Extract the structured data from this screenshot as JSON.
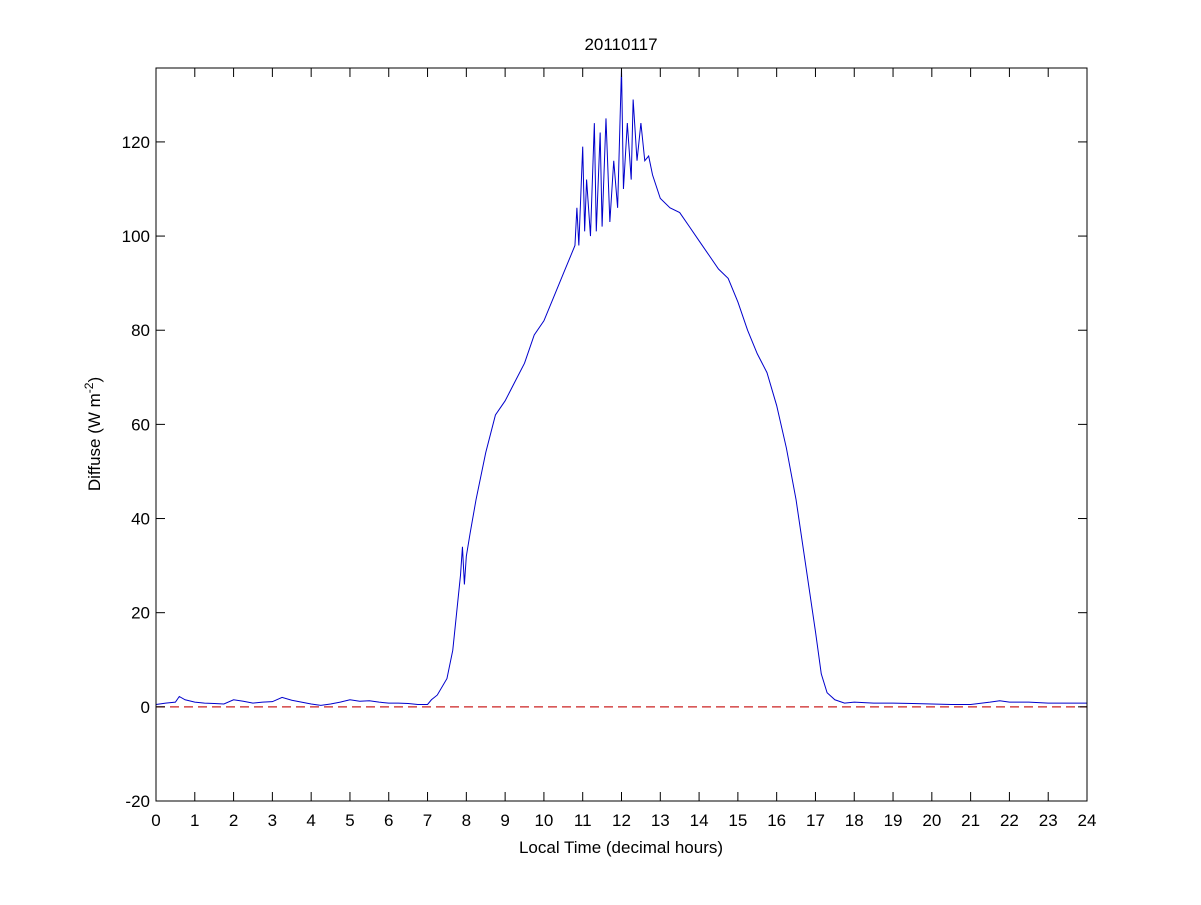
{
  "chart_data": {
    "type": "line",
    "title": "20110117",
    "xlabel": "Local Time (decimal hours)",
    "ylabel": "Diffuse (W m",
    "ylabel_sup": "-2",
    "ylabel_end": ")",
    "xlim": [
      0,
      24
    ],
    "ylim": [
      -20,
      135.7
    ],
    "xticks": [
      0,
      1,
      2,
      3,
      4,
      5,
      6,
      7,
      8,
      9,
      10,
      11,
      12,
      13,
      14,
      15,
      16,
      17,
      18,
      19,
      20,
      21,
      22,
      23,
      24
    ],
    "yticks": [
      -20,
      0,
      20,
      40,
      60,
      80,
      100,
      120
    ],
    "reference_line": {
      "y": 0,
      "color": "#cc2222",
      "dashed": true
    },
    "x": [
      0,
      0.25,
      0.5,
      0.6,
      0.75,
      1,
      1.25,
      1.5,
      1.75,
      2,
      2.25,
      2.5,
      2.75,
      3,
      3.25,
      3.5,
      3.75,
      4,
      4.25,
      4.5,
      4.75,
      5,
      5.25,
      5.5,
      5.75,
      6,
      6.25,
      6.5,
      6.75,
      7,
      7.1,
      7.25,
      7.5,
      7.65,
      7.75,
      7.85,
      7.9,
      7.95,
      8,
      8.1,
      8.25,
      8.5,
      8.75,
      9,
      9.25,
      9.5,
      9.75,
      10,
      10.25,
      10.5,
      10.7,
      10.8,
      10.85,
      10.9,
      11,
      11.05,
      11.1,
      11.2,
      11.3,
      11.35,
      11.45,
      11.5,
      11.6,
      11.7,
      11.8,
      11.9,
      12,
      12.05,
      12.15,
      12.25,
      12.3,
      12.4,
      12.5,
      12.6,
      12.7,
      12.8,
      13,
      13.25,
      13.5,
      13.75,
      14,
      14.25,
      14.5,
      14.75,
      15,
      15.25,
      15.5,
      15.75,
      16,
      16.25,
      16.5,
      16.75,
      17,
      17.15,
      17.3,
      17.5,
      17.75,
      18,
      18.5,
      19,
      19.5,
      20,
      20.5,
      21,
      21.5,
      21.75,
      22,
      22.5,
      23,
      24
    ],
    "series": [
      {
        "color": "#0000cc",
        "values": [
          0.5,
          0.8,
          1,
          2.2,
          1.5,
          1,
          0.8,
          0.7,
          0.6,
          1.5,
          1.2,
          0.8,
          1,
          1.1,
          2,
          1.4,
          1,
          0.6,
          0.3,
          0.6,
          1,
          1.5,
          1.2,
          1.3,
          1,
          0.8,
          0.8,
          0.7,
          0.5,
          0.5,
          1.5,
          2.5,
          6,
          12,
          20,
          28,
          34,
          26,
          32,
          37,
          44,
          54,
          62,
          65,
          69,
          73,
          79,
          82,
          87,
          92,
          96,
          98,
          106,
          98,
          119,
          101,
          112,
          100,
          124,
          101,
          122,
          102,
          125,
          103,
          116,
          106,
          135.7,
          110,
          124,
          112,
          129,
          116,
          124,
          116,
          117,
          113,
          108,
          106,
          105,
          102,
          99,
          96,
          93,
          91,
          86,
          80,
          75,
          71,
          64,
          55,
          44,
          30,
          16,
          7,
          3,
          1.5,
          0.8,
          1,
          0.8,
          0.8,
          0.7,
          0.6,
          0.5,
          0.5,
          1,
          1.3,
          1,
          1,
          0.8,
          0.8
        ]
      }
    ]
  }
}
